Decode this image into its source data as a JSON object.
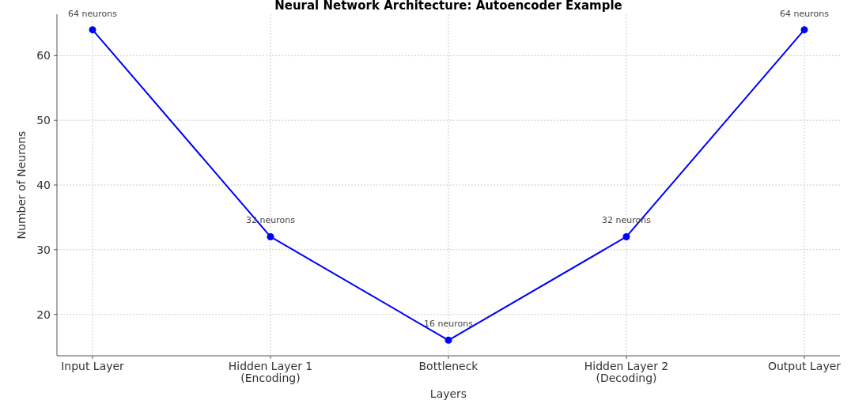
{
  "chart_data": {
    "type": "line",
    "title": "Neural Network Architecture: Autoencoder Example",
    "xlabel": "Layers",
    "ylabel": "Number of Neurons",
    "categories": [
      "Input Layer",
      "Hidden Layer 1\n(Encoding)",
      "Bottleneck",
      "Hidden Layer 2\n(Decoding)",
      "Output Layer"
    ],
    "series": [
      {
        "color": "#0000ff",
        "values": [
          64,
          32,
          16,
          32,
          64
        ],
        "value_labels": [
          "64 neurons",
          "32 neurons",
          "16 neurons",
          "32 neurons",
          "64 neurons"
        ]
      }
    ],
    "ylim": [
      13.6,
      66.4
    ],
    "yticks": [
      20,
      30,
      40,
      50,
      60
    ],
    "grid": true,
    "marker": "circle",
    "line_style": "solid"
  }
}
